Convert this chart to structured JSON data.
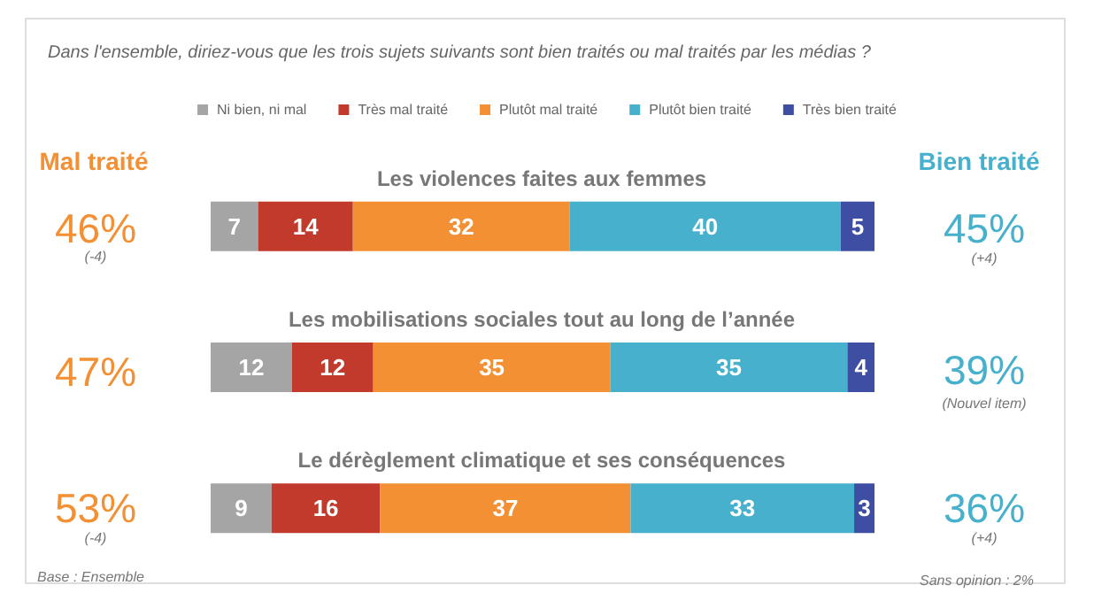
{
  "chart_data": {
    "type": "bar",
    "orientation": "horizontal",
    "stacked": true,
    "data_labels": true,
    "legend": "top",
    "title": "Dans l'ensemble, diriez-vous que les trois sujets suivants sont bien traités ou mal traités par les médias ?",
    "categories": [
      "Les violences faites aux femmes",
      "Les mobilisations sociales tout au long de l’année",
      "Le dérèglement climatique et ses conséquences"
    ],
    "series": [
      {
        "name": "Ni bien, ni mal",
        "color": "#a5a5a5",
        "values": [
          7,
          12,
          9
        ]
      },
      {
        "name": "Très mal traité",
        "color": "#c23a2b",
        "values": [
          14,
          12,
          16
        ]
      },
      {
        "name": "Plutôt mal traité",
        "color": "#f29033",
        "values": [
          32,
          35,
          37
        ]
      },
      {
        "name": "Plutôt bien traité",
        "color": "#47b0cc",
        "values": [
          40,
          35,
          33
        ]
      },
      {
        "name": "Très bien traité",
        "color": "#3e4fa3",
        "values": [
          5,
          4,
          3
        ]
      }
    ],
    "annotations": [
      "Mal traité",
      "Bien traité",
      "46%",
      "(-4)",
      "45%",
      "(+4)",
      "47%",
      "39%",
      "(Nouvel item)",
      "53%",
      "(-4)",
      "36%",
      "(+4)",
      "Base : Ensemble",
      "Sans opinion : 2%"
    ]
  }
}
